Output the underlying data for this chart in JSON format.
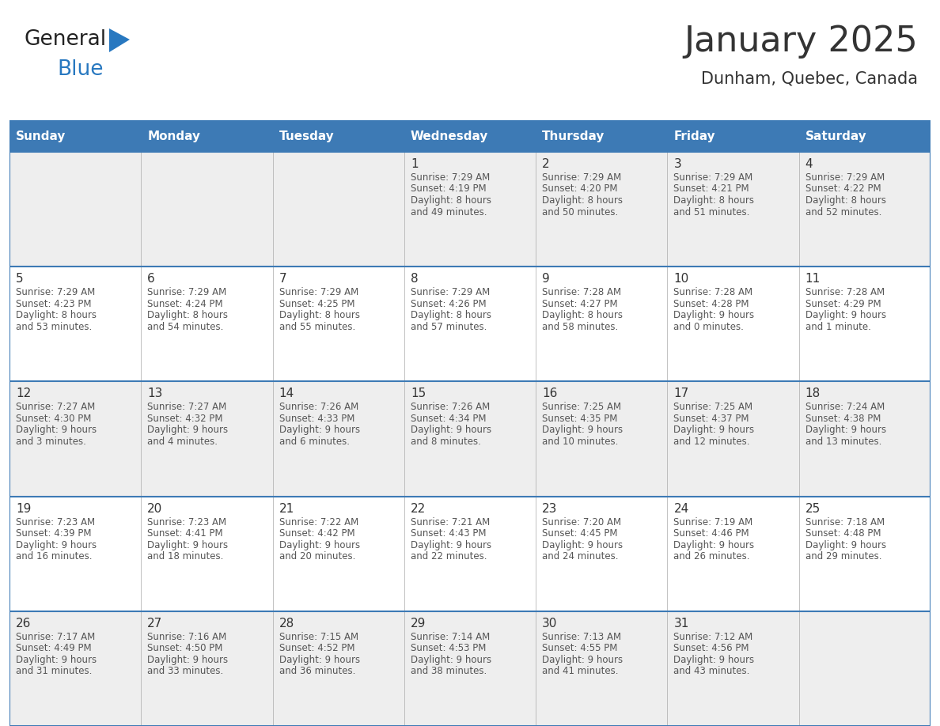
{
  "title": "January 2025",
  "subtitle": "Dunham, Quebec, Canada",
  "header_color": "#3D7AB5",
  "header_text_color": "#FFFFFF",
  "days_of_week": [
    "Sunday",
    "Monday",
    "Tuesday",
    "Wednesday",
    "Thursday",
    "Friday",
    "Saturday"
  ],
  "background_color": "#FFFFFF",
  "cell_bg_even": "#EEEEEE",
  "cell_bg_odd": "#FFFFFF",
  "row_line_color": "#3D7AB5",
  "text_color": "#333333",
  "gray_text_color": "#555555",
  "calendar_data": [
    [
      {
        "day": "",
        "sunrise": "",
        "sunset": "",
        "daylight": ""
      },
      {
        "day": "",
        "sunrise": "",
        "sunset": "",
        "daylight": ""
      },
      {
        "day": "",
        "sunrise": "",
        "sunset": "",
        "daylight": ""
      },
      {
        "day": "1",
        "sunrise": "7:29 AM",
        "sunset": "4:19 PM",
        "daylight": "8 hours\nand 49 minutes."
      },
      {
        "day": "2",
        "sunrise": "7:29 AM",
        "sunset": "4:20 PM",
        "daylight": "8 hours\nand 50 minutes."
      },
      {
        "day": "3",
        "sunrise": "7:29 AM",
        "sunset": "4:21 PM",
        "daylight": "8 hours\nand 51 minutes."
      },
      {
        "day": "4",
        "sunrise": "7:29 AM",
        "sunset": "4:22 PM",
        "daylight": "8 hours\nand 52 minutes."
      }
    ],
    [
      {
        "day": "5",
        "sunrise": "7:29 AM",
        "sunset": "4:23 PM",
        "daylight": "8 hours\nand 53 minutes."
      },
      {
        "day": "6",
        "sunrise": "7:29 AM",
        "sunset": "4:24 PM",
        "daylight": "8 hours\nand 54 minutes."
      },
      {
        "day": "7",
        "sunrise": "7:29 AM",
        "sunset": "4:25 PM",
        "daylight": "8 hours\nand 55 minutes."
      },
      {
        "day": "8",
        "sunrise": "7:29 AM",
        "sunset": "4:26 PM",
        "daylight": "8 hours\nand 57 minutes."
      },
      {
        "day": "9",
        "sunrise": "7:28 AM",
        "sunset": "4:27 PM",
        "daylight": "8 hours\nand 58 minutes."
      },
      {
        "day": "10",
        "sunrise": "7:28 AM",
        "sunset": "4:28 PM",
        "daylight": "9 hours\nand 0 minutes."
      },
      {
        "day": "11",
        "sunrise": "7:28 AM",
        "sunset": "4:29 PM",
        "daylight": "9 hours\nand 1 minute."
      }
    ],
    [
      {
        "day": "12",
        "sunrise": "7:27 AM",
        "sunset": "4:30 PM",
        "daylight": "9 hours\nand 3 minutes."
      },
      {
        "day": "13",
        "sunrise": "7:27 AM",
        "sunset": "4:32 PM",
        "daylight": "9 hours\nand 4 minutes."
      },
      {
        "day": "14",
        "sunrise": "7:26 AM",
        "sunset": "4:33 PM",
        "daylight": "9 hours\nand 6 minutes."
      },
      {
        "day": "15",
        "sunrise": "7:26 AM",
        "sunset": "4:34 PM",
        "daylight": "9 hours\nand 8 minutes."
      },
      {
        "day": "16",
        "sunrise": "7:25 AM",
        "sunset": "4:35 PM",
        "daylight": "9 hours\nand 10 minutes."
      },
      {
        "day": "17",
        "sunrise": "7:25 AM",
        "sunset": "4:37 PM",
        "daylight": "9 hours\nand 12 minutes."
      },
      {
        "day": "18",
        "sunrise": "7:24 AM",
        "sunset": "4:38 PM",
        "daylight": "9 hours\nand 13 minutes."
      }
    ],
    [
      {
        "day": "19",
        "sunrise": "7:23 AM",
        "sunset": "4:39 PM",
        "daylight": "9 hours\nand 16 minutes."
      },
      {
        "day": "20",
        "sunrise": "7:23 AM",
        "sunset": "4:41 PM",
        "daylight": "9 hours\nand 18 minutes."
      },
      {
        "day": "21",
        "sunrise": "7:22 AM",
        "sunset": "4:42 PM",
        "daylight": "9 hours\nand 20 minutes."
      },
      {
        "day": "22",
        "sunrise": "7:21 AM",
        "sunset": "4:43 PM",
        "daylight": "9 hours\nand 22 minutes."
      },
      {
        "day": "23",
        "sunrise": "7:20 AM",
        "sunset": "4:45 PM",
        "daylight": "9 hours\nand 24 minutes."
      },
      {
        "day": "24",
        "sunrise": "7:19 AM",
        "sunset": "4:46 PM",
        "daylight": "9 hours\nand 26 minutes."
      },
      {
        "day": "25",
        "sunrise": "7:18 AM",
        "sunset": "4:48 PM",
        "daylight": "9 hours\nand 29 minutes."
      }
    ],
    [
      {
        "day": "26",
        "sunrise": "7:17 AM",
        "sunset": "4:49 PM",
        "daylight": "9 hours\nand 31 minutes."
      },
      {
        "day": "27",
        "sunrise": "7:16 AM",
        "sunset": "4:50 PM",
        "daylight": "9 hours\nand 33 minutes."
      },
      {
        "day": "28",
        "sunrise": "7:15 AM",
        "sunset": "4:52 PM",
        "daylight": "9 hours\nand 36 minutes."
      },
      {
        "day": "29",
        "sunrise": "7:14 AM",
        "sunset": "4:53 PM",
        "daylight": "9 hours\nand 38 minutes."
      },
      {
        "day": "30",
        "sunrise": "7:13 AM",
        "sunset": "4:55 PM",
        "daylight": "9 hours\nand 41 minutes."
      },
      {
        "day": "31",
        "sunrise": "7:12 AM",
        "sunset": "4:56 PM",
        "daylight": "9 hours\nand 43 minutes."
      },
      {
        "day": "",
        "sunrise": "",
        "sunset": "",
        "daylight": ""
      }
    ]
  ],
  "logo_general_color": "#222222",
  "logo_blue_color": "#2878C0",
  "title_fontsize": 32,
  "subtitle_fontsize": 15,
  "header_fontsize": 11,
  "day_num_fontsize": 11,
  "cell_text_fontsize": 8.5
}
